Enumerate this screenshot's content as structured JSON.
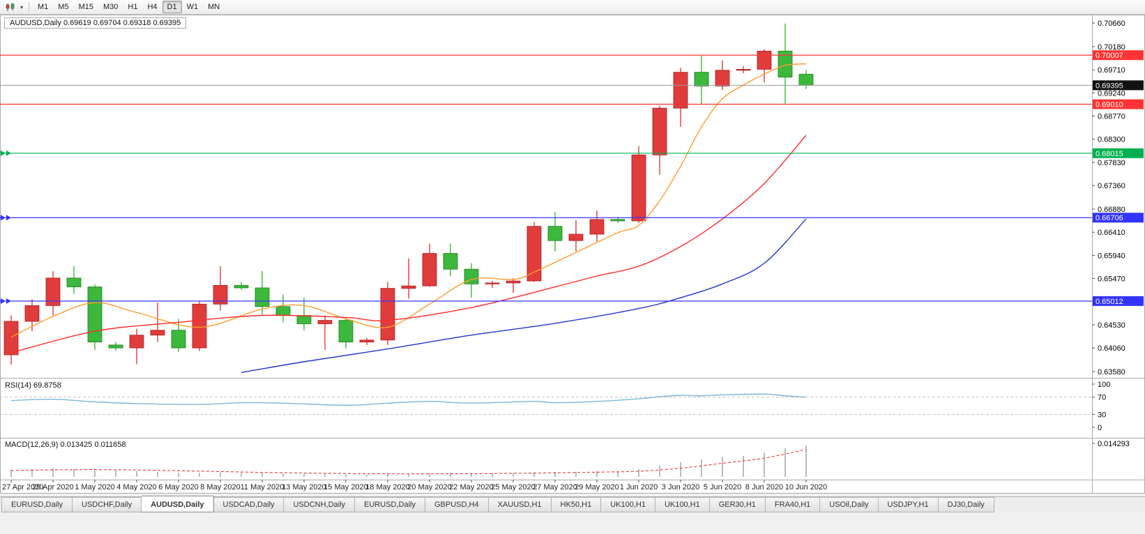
{
  "colors": {
    "toolbar_bg": "#f0f0f0",
    "chart_bg": "#ffffff",
    "border": "#a9a9a9",
    "up": "#e03c3c",
    "up_dark": "#a61f1f",
    "down": "#3cb83c",
    "down_dark": "#1f7d1f",
    "ma_fast": "#ff9c2e",
    "ma_mid": "#ff2a2a",
    "ma_slow": "#2233cc",
    "line_red": "#ff3333",
    "line_green": "#00b050",
    "line_blue": "#3333ff",
    "bid_line": "#9a9a9a",
    "bid_tag_bg": "#111111",
    "rsi_line": "#7ab6d9",
    "macd_bar": "#a8a8a8",
    "macd_signal": "#ee3333"
  },
  "toolbar": {
    "chart_icon": "candlestick-chart-icon",
    "timeframes": [
      "M1",
      "M5",
      "M15",
      "M30",
      "H1",
      "H4",
      "D1",
      "W1",
      "MN"
    ],
    "active_timeframe": "D1"
  },
  "chart": {
    "title_line": "AUDUSD,Daily  0.69619 0.69704 0.69318 0.69395"
  },
  "chart_data": {
    "type": "candlestick",
    "symbol": "AUDUSD",
    "timeframe": "Daily",
    "current_bar": {
      "open": 0.69619,
      "high": 0.69704,
      "low": 0.69318,
      "close": 0.69395
    },
    "convention": "red-bullish green-bearish",
    "price_axis": {
      "labels": [
        "0.70660",
        "0.70180",
        "0.69710",
        "0.69240",
        "0.68770",
        "0.68300",
        "0.67830",
        "0.67360",
        "0.66880",
        "0.66410",
        "0.65940",
        "0.65470",
        "0.64530",
        "0.64060",
        "0.63580"
      ]
    },
    "x_labels": [
      {
        "text": "27 Apr 2020",
        "i": 0
      },
      {
        "text": "29 Apr 2020",
        "i": 2
      },
      {
        "text": "1 May 2020",
        "i": 4
      },
      {
        "text": "4 May 2020",
        "i": 6
      },
      {
        "text": "6 May 2020",
        "i": 8
      },
      {
        "text": "8 May 2020",
        "i": 10
      },
      {
        "text": "11 May 2020",
        "i": 12
      },
      {
        "text": "13 May 2020",
        "i": 14
      },
      {
        "text": "15 May 2020",
        "i": 16
      },
      {
        "text": "18 May 2020",
        "i": 18
      },
      {
        "text": "20 May 2020",
        "i": 20
      },
      {
        "text": "22 May 2020",
        "i": 22
      },
      {
        "text": "25 May 2020",
        "i": 24
      },
      {
        "text": "27 May 2020",
        "i": 26
      },
      {
        "text": "29 May 2020",
        "i": 28
      },
      {
        "text": "1 Jun 2020",
        "i": 30
      },
      {
        "text": "3 Jun 2020",
        "i": 32
      },
      {
        "text": "5 Jun 2020",
        "i": 34
      },
      {
        "text": "8 Jun 2020",
        "i": 36
      },
      {
        "text": "10 Jun 2020",
        "i": 38
      }
    ],
    "candles": [
      {
        "d": "27 Apr 2020",
        "o": 0.6392,
        "h": 0.6472,
        "l": 0.6372,
        "c": 0.646
      },
      {
        "d": "28 Apr 2020",
        "o": 0.646,
        "h": 0.6505,
        "l": 0.644,
        "c": 0.6492
      },
      {
        "d": "29 Apr 2020",
        "o": 0.6492,
        "h": 0.6562,
        "l": 0.6472,
        "c": 0.6548
      },
      {
        "d": "30 Apr 2020",
        "o": 0.6548,
        "h": 0.6572,
        "l": 0.6516,
        "c": 0.653
      },
      {
        "d": "1 May 2020",
        "o": 0.653,
        "h": 0.6535,
        "l": 0.6402,
        "c": 0.6418
      },
      {
        "d": "3 May 2020",
        "o": 0.6412,
        "h": 0.6418,
        "l": 0.64,
        "c": 0.6406
      },
      {
        "d": "4 May 2020",
        "o": 0.6406,
        "h": 0.6445,
        "l": 0.6373,
        "c": 0.6432
      },
      {
        "d": "5 May 2020",
        "o": 0.6432,
        "h": 0.6498,
        "l": 0.6418,
        "c": 0.6442
      },
      {
        "d": "6 May 2020",
        "o": 0.6442,
        "h": 0.6465,
        "l": 0.6398,
        "c": 0.6406
      },
      {
        "d": "7 May 2020",
        "o": 0.6406,
        "h": 0.65,
        "l": 0.64,
        "c": 0.6495
      },
      {
        "d": "8 May 2020",
        "o": 0.6495,
        "h": 0.6572,
        "l": 0.6482,
        "c": 0.6533
      },
      {
        "d": "10 May 2020",
        "o": 0.6533,
        "h": 0.654,
        "l": 0.6524,
        "c": 0.6528
      },
      {
        "d": "11 May 2020",
        "o": 0.6528,
        "h": 0.6562,
        "l": 0.6472,
        "c": 0.649
      },
      {
        "d": "12 May 2020",
        "o": 0.649,
        "h": 0.6515,
        "l": 0.6458,
        "c": 0.6472
      },
      {
        "d": "13 May 2020",
        "o": 0.6472,
        "h": 0.6508,
        "l": 0.6442,
        "c": 0.6455
      },
      {
        "d": "14 May 2020",
        "o": 0.6455,
        "h": 0.6472,
        "l": 0.6402,
        "c": 0.6462
      },
      {
        "d": "15 May 2020",
        "o": 0.6462,
        "h": 0.6468,
        "l": 0.6405,
        "c": 0.6418
      },
      {
        "d": "17 May 2020",
        "o": 0.6418,
        "h": 0.6426,
        "l": 0.6412,
        "c": 0.6422
      },
      {
        "d": "18 May 2020",
        "o": 0.6422,
        "h": 0.654,
        "l": 0.6412,
        "c": 0.6527
      },
      {
        "d": "19 May 2020",
        "o": 0.6527,
        "h": 0.6588,
        "l": 0.6506,
        "c": 0.6532
      },
      {
        "d": "20 May 2020",
        "o": 0.6532,
        "h": 0.6618,
        "l": 0.653,
        "c": 0.6598
      },
      {
        "d": "21 May 2020",
        "o": 0.6598,
        "h": 0.6618,
        "l": 0.6552,
        "c": 0.6566
      },
      {
        "d": "22 May 2020",
        "o": 0.6566,
        "h": 0.6578,
        "l": 0.6508,
        "c": 0.6536
      },
      {
        "d": "24 May 2020",
        "o": 0.6536,
        "h": 0.6542,
        "l": 0.6528,
        "c": 0.6538
      },
      {
        "d": "25 May 2020",
        "o": 0.6538,
        "h": 0.6548,
        "l": 0.6518,
        "c": 0.6542
      },
      {
        "d": "26 May 2020",
        "o": 0.6542,
        "h": 0.6662,
        "l": 0.654,
        "c": 0.6653
      },
      {
        "d": "27 May 2020",
        "o": 0.6653,
        "h": 0.6682,
        "l": 0.6602,
        "c": 0.6624
      },
      {
        "d": "28 May 2020",
        "o": 0.6624,
        "h": 0.6666,
        "l": 0.6602,
        "c": 0.6637
      },
      {
        "d": "29 May 2020",
        "o": 0.6637,
        "h": 0.6685,
        "l": 0.6622,
        "c": 0.6667
      },
      {
        "d": "31 May 2020",
        "o": 0.6667,
        "h": 0.6672,
        "l": 0.666,
        "c": 0.6664
      },
      {
        "d": "1 Jun 2020",
        "o": 0.6664,
        "h": 0.6816,
        "l": 0.666,
        "c": 0.6798
      },
      {
        "d": "2 Jun 2020",
        "o": 0.6798,
        "h": 0.6898,
        "l": 0.6758,
        "c": 0.6893
      },
      {
        "d": "3 Jun 2020",
        "o": 0.6893,
        "h": 0.6975,
        "l": 0.6855,
        "c": 0.6966
      },
      {
        "d": "4 Jun 2020",
        "o": 0.6966,
        "h": 0.7,
        "l": 0.69,
        "c": 0.6938
      },
      {
        "d": "5 Jun 2020",
        "o": 0.6938,
        "h": 0.699,
        "l": 0.693,
        "c": 0.697
      },
      {
        "d": "7 Jun 2020",
        "o": 0.697,
        "h": 0.6978,
        "l": 0.6964,
        "c": 0.6972
      },
      {
        "d": "8 Jun 2020",
        "o": 0.6972,
        "h": 0.7013,
        "l": 0.6945,
        "c": 0.7009
      },
      {
        "d": "9 Jun 2020",
        "o": 0.7009,
        "h": 0.7065,
        "l": 0.6902,
        "c": 0.6956
      },
      {
        "d": "10 Jun 2020",
        "o": 0.69619,
        "h": 0.69704,
        "l": 0.69318,
        "c": 0.69395
      }
    ],
    "horizontal_lines": [
      {
        "price": 0.70007,
        "label": "0.70007",
        "color_key": "line_red",
        "handles": false
      },
      {
        "price": 0.6901,
        "label": "0.69010",
        "color_key": "line_red",
        "handles": false
      },
      {
        "price": 0.68015,
        "label": "0.68015",
        "color_key": "line_green",
        "handles": true
      },
      {
        "price": 0.66706,
        "label": "0.66706",
        "color_key": "line_blue",
        "handles": true
      },
      {
        "price": 0.65012,
        "label": "0.65012",
        "color_key": "line_blue",
        "handles": true
      }
    ],
    "bid": {
      "price": 0.69395,
      "label": "0.69395"
    },
    "moving_averages": [
      {
        "name": "ma-fast",
        "color_key": "ma_fast",
        "points": [
          [
            0,
            0.6428
          ],
          [
            2,
            0.647
          ],
          [
            4,
            0.6498
          ],
          [
            6,
            0.6478
          ],
          [
            9,
            0.6448
          ],
          [
            12,
            0.6485
          ],
          [
            14,
            0.6492
          ],
          [
            16,
            0.6465
          ],
          [
            18,
            0.6448
          ],
          [
            20,
            0.6495
          ],
          [
            22,
            0.6545
          ],
          [
            24,
            0.6545
          ],
          [
            25,
            0.656
          ],
          [
            27,
            0.66
          ],
          [
            29,
            0.664
          ],
          [
            30,
            0.6655
          ],
          [
            31,
            0.6705
          ],
          [
            32,
            0.6775
          ],
          [
            33,
            0.6855
          ],
          [
            34,
            0.6912
          ],
          [
            35,
            0.694
          ],
          [
            36,
            0.6962
          ],
          [
            37,
            0.698
          ],
          [
            38,
            0.6983
          ]
        ]
      },
      {
        "name": "ma-mid",
        "color_key": "ma_mid",
        "points": [
          [
            0,
            0.6396
          ],
          [
            4,
            0.644
          ],
          [
            8,
            0.6458
          ],
          [
            12,
            0.6472
          ],
          [
            16,
            0.6468
          ],
          [
            18,
            0.6462
          ],
          [
            22,
            0.6488
          ],
          [
            26,
            0.653
          ],
          [
            28,
            0.6552
          ],
          [
            30,
            0.6572
          ],
          [
            32,
            0.6612
          ],
          [
            34,
            0.6668
          ],
          [
            36,
            0.674
          ],
          [
            38,
            0.6838
          ]
        ]
      },
      {
        "name": "ma-slow",
        "color_key": "ma_slow",
        "points": [
          [
            11,
            0.6356
          ],
          [
            14,
            0.6378
          ],
          [
            18,
            0.6404
          ],
          [
            22,
            0.6432
          ],
          [
            26,
            0.6456
          ],
          [
            30,
            0.6486
          ],
          [
            32,
            0.6508
          ],
          [
            34,
            0.6536
          ],
          [
            36,
            0.6578
          ],
          [
            38,
            0.6668
          ]
        ]
      }
    ],
    "rsi": {
      "title": "RSI(14) 69.8758",
      "period": 14,
      "value": 69.8758,
      "levels": [
        "100",
        "70",
        "30",
        "0"
      ],
      "points": [
        [
          0,
          62
        ],
        [
          2,
          65
        ],
        [
          4,
          59
        ],
        [
          6,
          55
        ],
        [
          9,
          53
        ],
        [
          11,
          57
        ],
        [
          13,
          56
        ],
        [
          16,
          51
        ],
        [
          18,
          56
        ],
        [
          20,
          60
        ],
        [
          22,
          56
        ],
        [
          25,
          60
        ],
        [
          26,
          57
        ],
        [
          28,
          60
        ],
        [
          30,
          66
        ],
        [
          31,
          71
        ],
        [
          32,
          74
        ],
        [
          33,
          73
        ],
        [
          34,
          75
        ],
        [
          36,
          77
        ],
        [
          37,
          73
        ],
        [
          38,
          69.9
        ]
      ]
    },
    "macd": {
      "title": "MACD(12,26,9) 0.013425 0.011658",
      "fast": 12,
      "slow": 26,
      "signal_period": 9,
      "macd_value": 0.013425,
      "signal_value": 0.011658,
      "axis_max": 0.014293,
      "axis_max_label": "0.014293",
      "hist": [
        0.003,
        0.0033,
        0.0036,
        0.0034,
        0.0029,
        0.0027,
        0.0024,
        0.0021,
        0.0018,
        0.0017,
        0.0019,
        0.0018,
        0.0017,
        0.0015,
        0.0013,
        0.0012,
        0.0011,
        0.001,
        0.0011,
        0.0013,
        0.0016,
        0.0017,
        0.0016,
        0.0015,
        0.0016,
        0.0019,
        0.0021,
        0.0022,
        0.0024,
        0.0024,
        0.0033,
        0.0047,
        0.0062,
        0.0074,
        0.0085,
        0.0089,
        0.0103,
        0.0122,
        0.0134
      ],
      "signal": [
        [
          0,
          0.0027
        ],
        [
          4,
          0.0031
        ],
        [
          8,
          0.0026
        ],
        [
          12,
          0.0019
        ],
        [
          16,
          0.0014
        ],
        [
          20,
          0.0013
        ],
        [
          24,
          0.0015
        ],
        [
          28,
          0.002
        ],
        [
          30,
          0.0024
        ],
        [
          32,
          0.0037
        ],
        [
          34,
          0.0058
        ],
        [
          36,
          0.008
        ],
        [
          38,
          0.0117
        ]
      ]
    }
  },
  "tabs": {
    "items": [
      "EURUSD,Daily",
      "USDCHF,Daily",
      "AUDUSD,Daily",
      "USDCAD,Daily",
      "USDCNH,Daily",
      "EURUSD,Daily",
      "GBPUSD,H4",
      "XAUUSD,H1",
      "HK50,H1",
      "UK100,H1",
      "UK100,H1",
      "GER30,H1",
      "FRA40,H1",
      "USOil,Daily",
      "USDJPY,H1",
      "DJ30,Daily"
    ],
    "active_index": 2
  }
}
